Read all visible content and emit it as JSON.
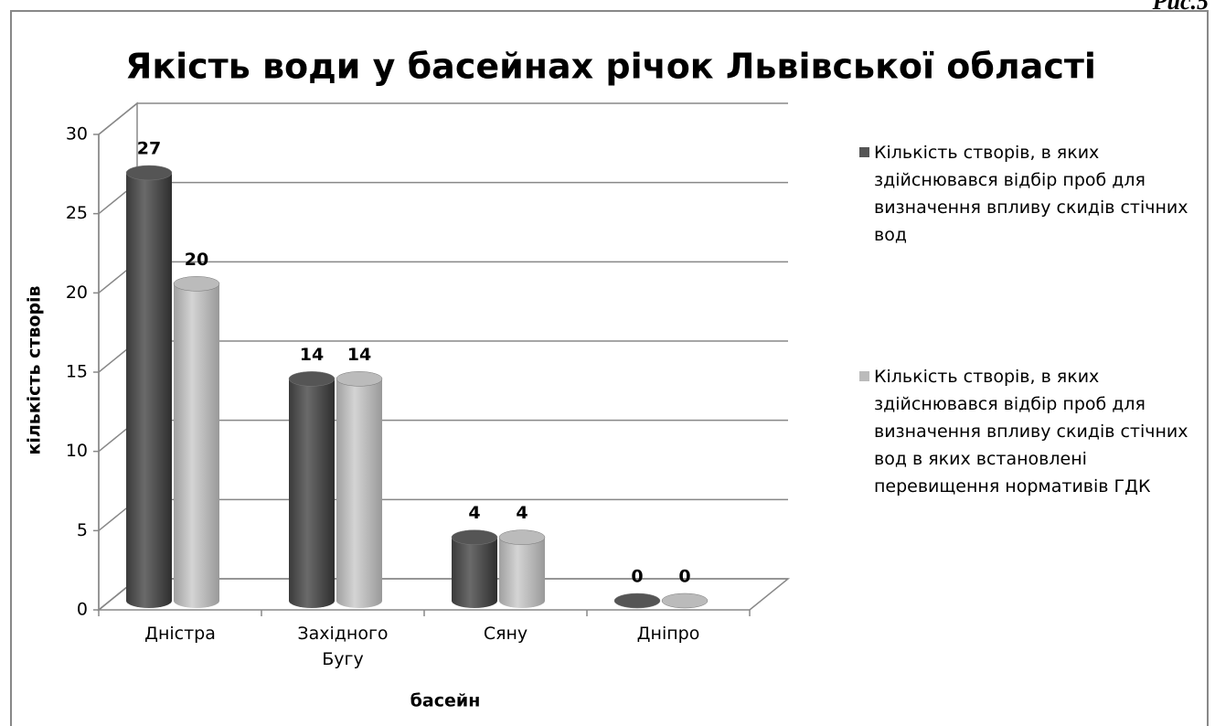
{
  "figure_label": "Рис.5",
  "chart_data": {
    "type": "bar3d",
    "title": "Якість води у басейнах річок Львівської області",
    "x_label": "басейн",
    "y_label": "кількість створів",
    "categories": [
      "Дністра",
      "Західного Бугу",
      "Сяну",
      "Дніпро"
    ],
    "series": [
      {
        "name": "Кількість створів, в яких здійснювався відбір проб для визначення впливу скидів стічних вод",
        "color": "#555555",
        "values": [
          27,
          14,
          4,
          0
        ]
      },
      {
        "name": "Кількість створів, в яких здійснювався відбір проб для визначення впливу скидів стічних вод в яких встановлені перевищення нормативів ГДК",
        "color": "#bbbbbb",
        "values": [
          20,
          14,
          4,
          0
        ]
      }
    ],
    "ylim": [
      0,
      30
    ],
    "yticks": [
      0,
      5,
      10,
      15,
      20,
      25,
      30
    ],
    "grid": true,
    "legend": "right"
  }
}
